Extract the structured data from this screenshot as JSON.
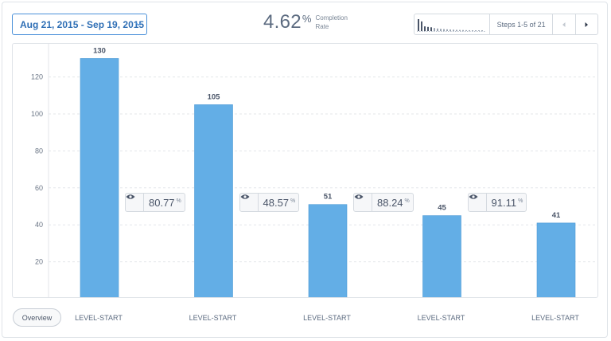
{
  "date_range": {
    "label": "Aug 21, 2015 - Sep 19, 2015"
  },
  "completion": {
    "value": "4.62",
    "unit": "%",
    "caption_line1": "Completion",
    "caption_line2": "Rate"
  },
  "steps_nav": {
    "label": "Steps 1-5 of 21",
    "sparkline_values": [
      130,
      105,
      51,
      45,
      41,
      33,
      28,
      24,
      21,
      19,
      17,
      15,
      13,
      12,
      11,
      10,
      9,
      8,
      7,
      7,
      6
    ]
  },
  "overview_label": "Overview",
  "colors": {
    "bar": "#63aee6",
    "accent": "#4a90d9",
    "grid": "#e3e6ea"
  },
  "chart_data": {
    "type": "bar",
    "categories": [
      "LEVEL-START",
      "LEVEL-START",
      "LEVEL-START",
      "LEVEL-START",
      "LEVEL-START"
    ],
    "values": [
      130,
      105,
      51,
      45,
      41
    ],
    "value_labels": [
      "130",
      "105",
      "51",
      "45",
      "41"
    ],
    "yticks": [
      20,
      40,
      60,
      80,
      100,
      120
    ],
    "ylim": [
      0,
      140
    ],
    "grid": true,
    "conversion_rates": [
      {
        "value": "80.77",
        "unit": "%"
      },
      {
        "value": "48.57",
        "unit": "%"
      },
      {
        "value": "88.24",
        "unit": "%"
      },
      {
        "value": "91.11",
        "unit": "%"
      }
    ]
  }
}
